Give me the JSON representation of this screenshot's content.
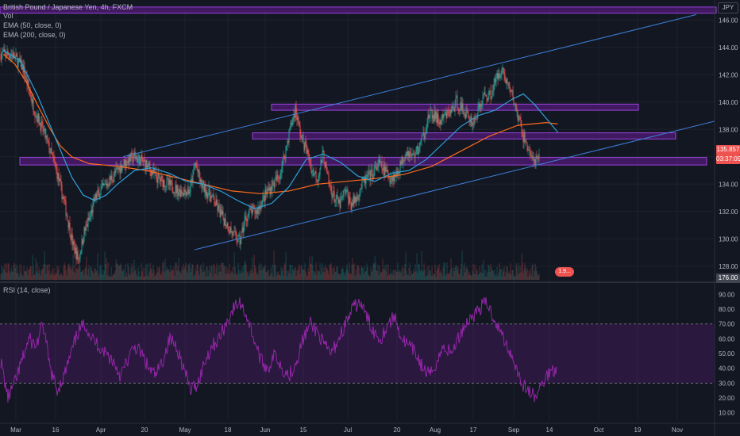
{
  "header": {
    "symbol": "British Pound / Japanese Yen, 4h, FXCM",
    "vol": "Vol",
    "ema50": "EMA (50, close, 0)",
    "ema200": "EMA (200, close, 0)",
    "currency": "JPY",
    "price_tag": "135.857",
    "countdown": "03:37:09",
    "vol_tag": "1.9...",
    "vol_axis_label": "176.00",
    "rsi_title": "RSI (14, close)"
  },
  "colors": {
    "zone_fill": "#4a1a6b",
    "zone_border": "#b04dff",
    "channel": "#3d7fd9",
    "ema50": "#2e9fd8",
    "ema200": "#ff6b1a",
    "rsi": "#9c27b0",
    "up": "#26a69a",
    "down": "#ef5350"
  },
  "chart_data": [
    {
      "type": "candlestick",
      "x_labels": [
        "Mar",
        "16",
        "Apr",
        "20",
        "May",
        "18",
        "Jun",
        "15",
        "Jul",
        "20",
        "Aug",
        "17",
        "Sep",
        "14",
        "Oct",
        "19",
        "Nov"
      ],
      "y_ticks": [
        128.0,
        130.0,
        132.0,
        134.0,
        136.0,
        138.0,
        140.0,
        142.0,
        144.0,
        146.0
      ],
      "ylim": [
        127.0,
        147.0
      ],
      "price_path": [
        [
          0,
          143.5
        ],
        [
          2,
          143.5
        ],
        [
          4,
          142.5
        ],
        [
          6,
          139.5
        ],
        [
          8,
          137.5
        ],
        [
          10,
          135.0
        ],
        [
          11.5,
          132.5
        ],
        [
          13,
          129.5
        ],
        [
          14,
          128.5
        ],
        [
          15,
          130.5
        ],
        [
          16,
          131.5
        ],
        [
          17,
          133.0
        ],
        [
          18,
          133.5
        ],
        [
          20,
          134.5
        ],
        [
          22,
          135.5
        ],
        [
          24,
          136.0
        ],
        [
          26,
          135.5
        ],
        [
          28,
          134.5
        ],
        [
          30,
          134.0
        ],
        [
          32,
          133.5
        ],
        [
          34,
          133.5
        ],
        [
          35,
          135.5
        ],
        [
          36,
          134.0
        ],
        [
          38,
          133.0
        ],
        [
          40,
          131.5
        ],
        [
          42,
          130.2
        ],
        [
          43,
          129.8
        ],
        [
          44,
          131.5
        ],
        [
          45,
          132.0
        ],
        [
          46,
          132.0
        ],
        [
          48,
          133.5
        ],
        [
          50,
          134.5
        ],
        [
          51,
          136.0
        ],
        [
          52,
          138.0
        ],
        [
          53,
          139.5
        ],
        [
          54,
          137.5
        ],
        [
          55,
          136.5
        ],
        [
          56,
          135.0
        ],
        [
          57,
          134.5
        ],
        [
          58,
          136.2
        ],
        [
          59,
          134.0
        ],
        [
          60,
          133.0
        ],
        [
          61,
          132.5
        ],
        [
          62,
          133.5
        ],
        [
          63,
          132.5
        ],
        [
          64,
          133.0
        ],
        [
          65,
          134.0
        ],
        [
          66,
          134.5
        ],
        [
          67,
          134.8
        ],
        [
          68,
          135.5
        ],
        [
          69,
          135.0
        ],
        [
          70,
          134.5
        ],
        [
          71,
          134.6
        ],
        [
          72,
          135.5
        ],
        [
          73,
          136.5
        ],
        [
          74,
          136.0
        ],
        [
          75,
          136.5
        ],
        [
          76,
          137.5
        ],
        [
          77,
          139.0
        ],
        [
          78,
          139.0
        ],
        [
          79,
          138.5
        ],
        [
          80,
          139.0
        ],
        [
          81,
          139.3
        ],
        [
          82,
          140.0
        ],
        [
          83,
          139.5
        ],
        [
          84,
          139.0
        ],
        [
          85,
          138.5
        ],
        [
          86,
          139.5
        ],
        [
          87,
          140.5
        ],
        [
          88,
          140.5
        ],
        [
          89,
          141.5
        ],
        [
          90,
          142.5
        ],
        [
          91,
          141.5
        ],
        [
          92,
          140.5
        ],
        [
          93,
          139.0
        ],
        [
          94,
          137.5
        ],
        [
          95,
          136.5
        ],
        [
          96,
          135.5
        ],
        [
          97,
          135.9
        ]
      ],
      "ema50_path": [
        [
          0,
          143.8
        ],
        [
          3,
          143.0
        ],
        [
          6,
          140.5
        ],
        [
          9,
          137.5
        ],
        [
          12,
          134.5
        ],
        [
          14,
          133.2
        ],
        [
          16,
          132.8
        ],
        [
          18,
          133.2
        ],
        [
          20,
          134.0
        ],
        [
          23,
          135.0
        ],
        [
          26,
          135.2
        ],
        [
          29,
          134.8
        ],
        [
          32,
          134.2
        ],
        [
          35,
          134.0
        ],
        [
          38,
          133.5
        ],
        [
          41,
          132.8
        ],
        [
          44,
          132.2
        ],
        [
          47,
          132.6
        ],
        [
          50,
          133.8
        ],
        [
          53,
          135.8
        ],
        [
          56,
          136.2
        ],
        [
          59,
          135.6
        ],
        [
          62,
          134.6
        ],
        [
          65,
          134.2
        ],
        [
          68,
          134.8
        ],
        [
          71,
          135.0
        ],
        [
          74,
          135.8
        ],
        [
          77,
          137.0
        ],
        [
          80,
          138.2
        ],
        [
          83,
          139.0
        ],
        [
          86,
          139.4
        ],
        [
          89,
          140.2
        ],
        [
          91,
          140.6
        ],
        [
          93,
          139.8
        ],
        [
          95,
          138.8
        ],
        [
          97,
          137.8
        ]
      ],
      "ema200_path": [
        [
          0,
          143.5
        ],
        [
          2,
          142.8
        ],
        [
          4,
          141.5
        ],
        [
          6,
          139.8
        ],
        [
          8,
          138.2
        ],
        [
          10,
          136.8
        ],
        [
          12,
          136.0
        ],
        [
          15,
          135.5
        ],
        [
          20,
          135.3
        ],
        [
          25,
          135.0
        ],
        [
          30,
          134.5
        ],
        [
          35,
          134.0
        ],
        [
          40,
          133.5
        ],
        [
          45,
          133.3
        ],
        [
          50,
          133.5
        ],
        [
          55,
          134.0
        ],
        [
          60,
          134.2
        ],
        [
          65,
          134.4
        ],
        [
          70,
          134.7
        ],
        [
          75,
          135.3
        ],
        [
          80,
          136.4
        ],
        [
          85,
          137.5
        ],
        [
          90,
          138.3
        ],
        [
          95,
          138.5
        ],
        [
          97,
          138.4
        ]
      ]
    },
    {
      "type": "line",
      "name": "RSI",
      "y_ticks": [
        10.0,
        20.0,
        30.0,
        40.0,
        50.0,
        60.0,
        70.0,
        80.0,
        90.0
      ],
      "ylim": [
        5.0,
        95.0
      ],
      "band": [
        30.0,
        70.0
      ],
      "values": [
        45,
        20,
        30,
        45,
        60,
        55,
        70,
        40,
        25,
        35,
        50,
        65,
        70,
        60,
        55,
        50,
        45,
        35,
        45,
        55,
        50,
        40,
        35,
        45,
        60,
        55,
        40,
        25,
        30,
        45,
        55,
        60,
        70,
        80,
        85,
        75,
        60,
        45,
        40,
        50,
        40,
        35,
        45,
        60,
        70,
        65,
        55,
        50,
        60,
        70,
        80,
        85,
        75,
        65,
        60,
        70,
        75,
        60,
        55,
        50,
        40,
        35,
        45,
        55,
        50,
        60,
        70,
        75,
        80,
        85,
        75,
        65,
        55,
        45,
        30,
        25,
        20,
        30,
        38,
        40
      ]
    }
  ]
}
